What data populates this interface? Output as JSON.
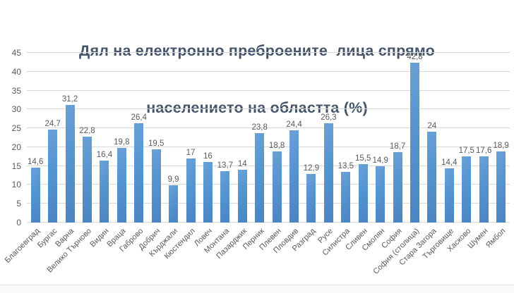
{
  "chart_data": {
    "type": "bar",
    "title": "Дял на електронно преброените лица спрямо населението на областта (%)",
    "title_lines": [
      "Дял на електронно преброените  лица спрямо",
      "населението на областта (%)"
    ],
    "categories": [
      "Благоевград",
      "Бургас",
      "Варна",
      "Велико Търново",
      "Видин",
      "Враца",
      "Габрово",
      "Добрич",
      "Кърджали",
      "Кюстендил",
      "Ловеч",
      "Монтана",
      "Пазарджик",
      "Перник",
      "Плевен",
      "Пловдив",
      "Разград",
      "Русе",
      "Силистра",
      "Сливен",
      "Смолян",
      "София",
      "София (столица)",
      "Стара Загора",
      "Търговище",
      "Хасково",
      "Шумен",
      "Ямбол"
    ],
    "values": [
      14.6,
      24.7,
      31.2,
      22.8,
      16.4,
      19.8,
      26.4,
      19.5,
      9.9,
      17,
      16,
      13.7,
      14,
      23.8,
      18.8,
      24.4,
      12.9,
      26.3,
      13.5,
      15.5,
      14.9,
      18.7,
      42.8,
      24,
      14.4,
      17.5,
      17.6,
      18.9
    ],
    "value_labels": [
      "14,6",
      "24,7",
      "31,2",
      "22,8",
      "16,4",
      "19,8",
      "26,4",
      "19,5",
      "9,9",
      "17",
      "16",
      "13,7",
      "14",
      "23,8",
      "18,8",
      "24,4",
      "12,9",
      "26,3",
      "13,5",
      "15,5",
      "14,9",
      "18,7",
      "42,8",
      "24",
      "14,4",
      "17,5",
      "17,6",
      "18,9"
    ],
    "xlabel": "",
    "ylabel": "",
    "ylim": [
      0,
      45
    ],
    "yticks": [
      0,
      5,
      10,
      15,
      20,
      25,
      30,
      35,
      40,
      45
    ],
    "grid": "horizontal",
    "legend": "none",
    "colors": {
      "bar": "#5494cf",
      "bar_gradient_start": "#6aa1d7",
      "bar_gradient_end": "#4a84c2",
      "gridline": "#d9d9d9",
      "title": "#44546a",
      "labels": "#595959"
    }
  }
}
